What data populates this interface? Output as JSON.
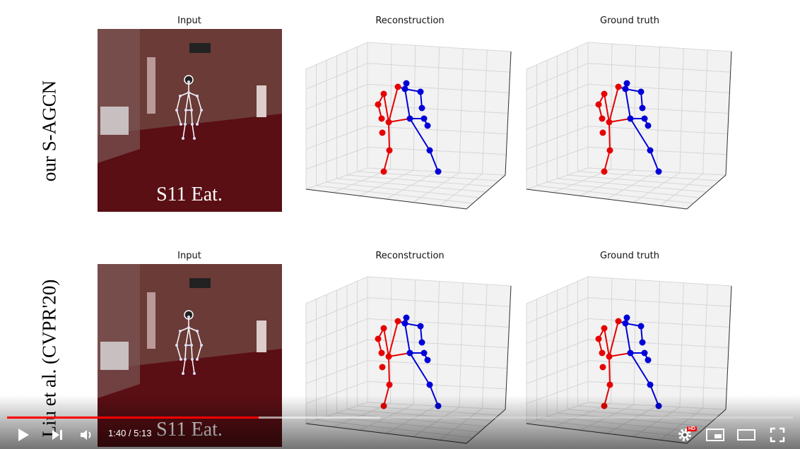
{
  "rows": [
    {
      "label": "our S-AGCN",
      "input_title": "Input",
      "input_caption": "S11 Eat.",
      "reconstruction_title": "Reconstruction",
      "ground_truth_title": "Ground truth"
    },
    {
      "label": "Liu et al. (CVPR'20)",
      "input_title": "Input",
      "input_caption": "S11 Eat.",
      "reconstruction_title": "Reconstruction",
      "ground_truth_title": "Ground truth"
    }
  ],
  "player": {
    "current_time": "1:40",
    "duration": "5:13",
    "time_separator": " / ",
    "progress_fraction": 0.32,
    "buffered_fraction": 0.475,
    "hd_badge": "HD"
  },
  "colors": {
    "left_limb": "#e60000",
    "right_limb": "#0000d8",
    "progress": "#ff0000"
  },
  "icons": [
    "play-icon",
    "next-icon",
    "volume-icon",
    "settings-icon",
    "miniplayer-icon",
    "theater-icon",
    "fullscreen-icon"
  ]
}
